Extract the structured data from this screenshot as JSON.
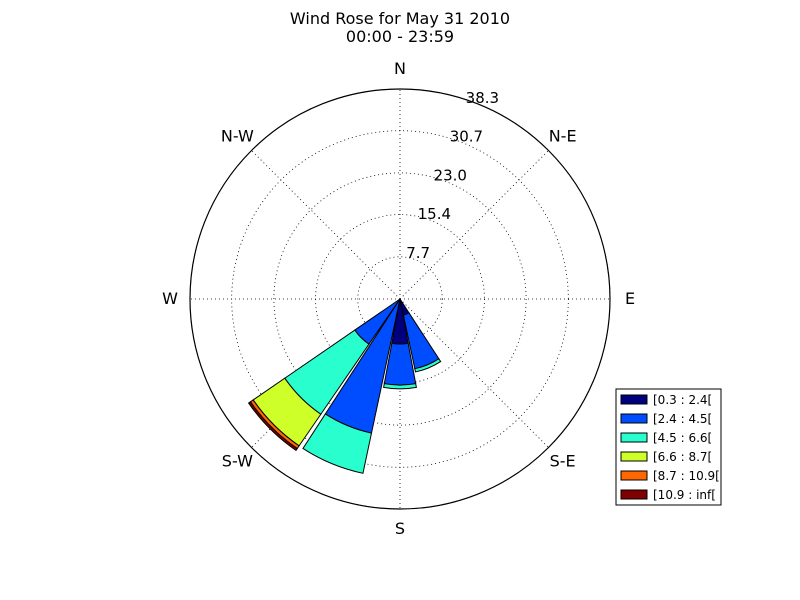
{
  "chart_data": {
    "type": "windrose",
    "title": "Wind Rose for May 31 2010",
    "subtitle": "00:00 - 23:59",
    "directions": [
      "N",
      "N-E",
      "E",
      "S-E",
      "S",
      "S-W",
      "W",
      "N-W"
    ],
    "rmax": 38.3,
    "radial_ticks": [
      "7.7",
      "15.4",
      "23.0",
      "30.7",
      "38.3"
    ],
    "radial_tick_values": [
      7.7,
      15.4,
      23.0,
      30.7,
      38.3
    ],
    "grid": true,
    "legend_position": "lower-right",
    "bins": [
      {
        "label": "[0.3 : 2.4[",
        "color": "#00007f"
      },
      {
        "label": "[2.4 : 4.5[",
        "color": "#004cff"
      },
      {
        "label": "[4.5 : 6.6[",
        "color": "#29ffce"
      },
      {
        "label": "[6.6 : 8.7[",
        "color": "#ceff29"
      },
      {
        "label": "[8.7 : 10.9[",
        "color": "#ff6800"
      },
      {
        "label": "[10.9 : inf[",
        "color": "#7f0000"
      }
    ],
    "sectors": [
      {
        "direction_deg": 157.5,
        "values": [
          3.0,
          10.0,
          0.6,
          0,
          0,
          0
        ]
      },
      {
        "direction_deg": 180.0,
        "values": [
          8.2,
          7.5,
          0.7,
          0,
          0,
          0
        ]
      },
      {
        "direction_deg": 202.5,
        "values": [
          0,
          25.0,
          7.5,
          0,
          0,
          0
        ]
      },
      {
        "direction_deg": 225.0,
        "values": [
          0,
          10.0,
          15.5,
          7.0,
          0.6,
          0.4
        ]
      }
    ]
  }
}
